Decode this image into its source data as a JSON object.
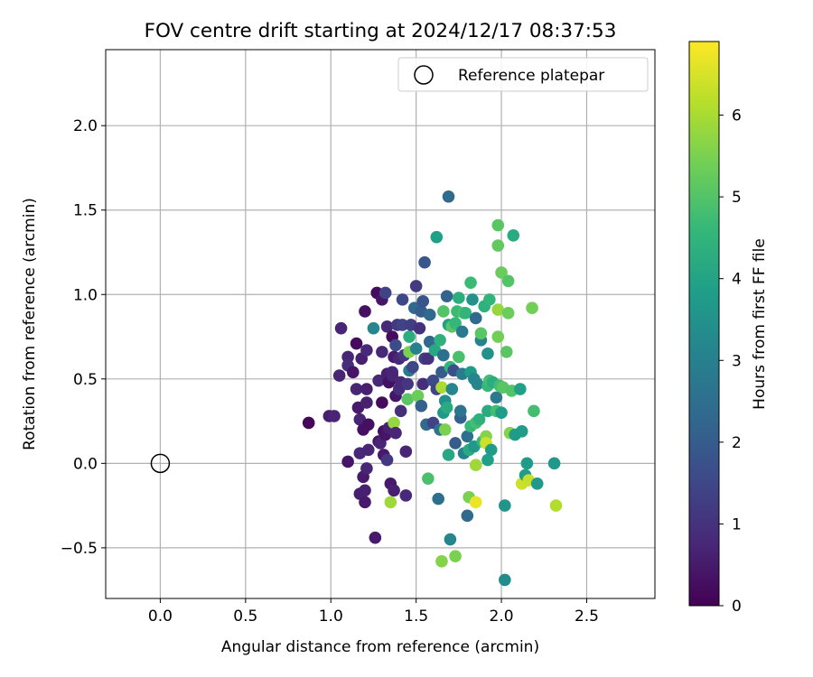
{
  "chart_data": {
    "type": "scatter",
    "title": "FOV centre drift starting at 2024/12/17 08:37:53",
    "xlabel": "Angular distance from reference (arcmin)",
    "ylabel": "Rotation from reference (arcmin)",
    "xlim": [
      -0.32,
      2.9
    ],
    "ylim": [
      -0.8,
      2.45
    ],
    "xticks": [
      "0.0",
      "0.5",
      "1.0",
      "1.5",
      "2.0",
      "2.5"
    ],
    "xtick_values": [
      0.0,
      0.5,
      1.0,
      1.5,
      2.0,
      2.5
    ],
    "yticks": [
      "−0.5",
      "0.0",
      "0.5",
      "1.0",
      "1.5",
      "2.0"
    ],
    "ytick_values": [
      -0.5,
      0.0,
      0.5,
      1.0,
      1.5,
      2.0
    ],
    "grid": true,
    "legend": {
      "position": "upper-right",
      "entries": [
        "Reference platepar"
      ]
    },
    "reference_point": {
      "x": 0.0,
      "y": 0.0,
      "marker": "open-circle"
    },
    "colorbar": {
      "label": "Hours from first FF file",
      "colormap": "viridis",
      "range": [
        0,
        6.9
      ],
      "ticks": [
        "0",
        "1",
        "2",
        "3",
        "4",
        "5",
        "6"
      ],
      "tick_values": [
        0,
        1,
        2,
        3,
        4,
        5,
        6
      ]
    },
    "series": [
      {
        "color_by": "hours",
        "points": [
          {
            "x": 0.87,
            "y": 0.24,
            "c": 0.1
          },
          {
            "x": 0.99,
            "y": 0.28,
            "c": 0.6
          },
          {
            "x": 1.02,
            "y": 0.28,
            "c": 0.7
          },
          {
            "x": 1.06,
            "y": 0.8,
            "c": 0.7
          },
          {
            "x": 1.05,
            "y": 0.52,
            "c": 0.7
          },
          {
            "x": 1.1,
            "y": 0.63,
            "c": 0.7
          },
          {
            "x": 1.1,
            "y": 0.58,
            "c": 0.9
          },
          {
            "x": 1.13,
            "y": 0.54,
            "c": 0.4
          },
          {
            "x": 1.1,
            "y": 0.01,
            "c": 0.4
          },
          {
            "x": 1.15,
            "y": 0.71,
            "c": 0.2
          },
          {
            "x": 1.15,
            "y": 0.44,
            "c": 0.7
          },
          {
            "x": 1.16,
            "y": 0.33,
            "c": 0.5
          },
          {
            "x": 1.17,
            "y": 0.26,
            "c": 0.7
          },
          {
            "x": 1.17,
            "y": 0.06,
            "c": 0.8
          },
          {
            "x": 1.17,
            "y": -0.18,
            "c": 0.6
          },
          {
            "x": 1.18,
            "y": 0.62,
            "c": 0.6
          },
          {
            "x": 1.19,
            "y": 0.2,
            "c": 0.3
          },
          {
            "x": 1.19,
            "y": -0.08,
            "c": 0.5
          },
          {
            "x": 1.2,
            "y": 0.9,
            "c": 0.3
          },
          {
            "x": 1.2,
            "y": -0.23,
            "c": 0.5
          },
          {
            "x": 1.21,
            "y": 0.67,
            "c": 0.8
          },
          {
            "x": 1.21,
            "y": 0.44,
            "c": 0.6
          },
          {
            "x": 1.21,
            "y": 0.36,
            "c": 0.6
          },
          {
            "x": 1.2,
            "y": -0.16,
            "c": 0.6
          },
          {
            "x": 1.22,
            "y": 0.08,
            "c": 0.7
          },
          {
            "x": 1.22,
            "y": 0.23,
            "c": 0.3
          },
          {
            "x": 1.21,
            "y": -0.03,
            "c": 0.7
          },
          {
            "x": 1.25,
            "y": 0.8,
            "c": 3.2
          },
          {
            "x": 1.26,
            "y": -0.44,
            "c": 0.5
          },
          {
            "x": 1.27,
            "y": 1.01,
            "c": 0.2
          },
          {
            "x": 1.28,
            "y": 0.49,
            "c": 0.8
          },
          {
            "x": 1.28,
            "y": 0.13,
            "c": 0.4
          },
          {
            "x": 1.29,
            "y": 0.12,
            "c": 0.7
          },
          {
            "x": 1.3,
            "y": 0.97,
            "c": 0.4
          },
          {
            "x": 1.3,
            "y": 0.66,
            "c": 0.8
          },
          {
            "x": 1.3,
            "y": 0.36,
            "c": 0.2
          },
          {
            "x": 1.31,
            "y": 0.05,
            "c": 0.5
          },
          {
            "x": 1.31,
            "y": 0.19,
            "c": 0.3
          },
          {
            "x": 1.32,
            "y": 0.17,
            "c": 0.4
          },
          {
            "x": 1.32,
            "y": 1.01,
            "c": 1.4
          },
          {
            "x": 1.33,
            "y": 0.81,
            "c": 0.8
          },
          {
            "x": 1.33,
            "y": 0.53,
            "c": 0.6
          },
          {
            "x": 1.33,
            "y": 0.02,
            "c": 1.1
          },
          {
            "x": 1.34,
            "y": 0.21,
            "c": 0.6
          },
          {
            "x": 1.34,
            "y": 0.48,
            "c": 0.3
          },
          {
            "x": 1.35,
            "y": -0.12,
            "c": 0.5
          },
          {
            "x": 1.35,
            "y": -0.23,
            "c": 5.9
          },
          {
            "x": 1.36,
            "y": 0.75,
            "c": 0.2
          },
          {
            "x": 1.36,
            "y": 0.54,
            "c": 0.8
          },
          {
            "x": 1.36,
            "y": 0.52,
            "c": 0.7
          },
          {
            "x": 1.37,
            "y": 0.63,
            "c": 0.5
          },
          {
            "x": 1.37,
            "y": 0.24,
            "c": 5.8
          },
          {
            "x": 1.37,
            "y": -0.16,
            "c": 0.6
          },
          {
            "x": 1.38,
            "y": 0.4,
            "c": 0.4
          },
          {
            "x": 1.38,
            "y": 0.7,
            "c": 1.6
          },
          {
            "x": 1.38,
            "y": 0.18,
            "c": 0.7
          },
          {
            "x": 1.39,
            "y": 0.82,
            "c": 1.2
          },
          {
            "x": 1.4,
            "y": 0.62,
            "c": 0.8
          },
          {
            "x": 1.4,
            "y": 0.44,
            "c": 0.9
          },
          {
            "x": 1.41,
            "y": 0.48,
            "c": 0.8
          },
          {
            "x": 1.41,
            "y": 0.31,
            "c": 0.9
          },
          {
            "x": 1.42,
            "y": 0.97,
            "c": 1.5
          },
          {
            "x": 1.42,
            "y": 0.82,
            "c": 1.4
          },
          {
            "x": 1.43,
            "y": 0.64,
            "c": 1.1
          },
          {
            "x": 1.44,
            "y": 0.07,
            "c": 0.7
          },
          {
            "x": 1.44,
            "y": -0.19,
            "c": 0.8
          },
          {
            "x": 1.45,
            "y": 0.47,
            "c": 1.1
          },
          {
            "x": 1.45,
            "y": 0.38,
            "c": 5.1
          },
          {
            "x": 1.46,
            "y": 0.66,
            "c": 5.5
          },
          {
            "x": 1.46,
            "y": 0.55,
            "c": 2.8
          },
          {
            "x": 1.46,
            "y": 0.75,
            "c": 4.3
          },
          {
            "x": 1.47,
            "y": 0.82,
            "c": 1.3
          },
          {
            "x": 1.48,
            "y": 0.57,
            "c": 1.5
          },
          {
            "x": 1.49,
            "y": 0.92,
            "c": 2.3
          },
          {
            "x": 1.5,
            "y": 1.05,
            "c": 1.2
          },
          {
            "x": 1.5,
            "y": 0.68,
            "c": 3.0
          },
          {
            "x": 1.51,
            "y": 0.4,
            "c": 5.3
          },
          {
            "x": 1.52,
            "y": 0.8,
            "c": 1.0
          },
          {
            "x": 1.53,
            "y": 0.9,
            "c": 2.0
          },
          {
            "x": 1.53,
            "y": 0.34,
            "c": 2.1
          },
          {
            "x": 1.54,
            "y": 0.47,
            "c": 0.9
          },
          {
            "x": 1.54,
            "y": 0.96,
            "c": 1.8
          },
          {
            "x": 1.55,
            "y": 1.19,
            "c": 1.9
          },
          {
            "x": 1.55,
            "y": 0.62,
            "c": 1.3
          },
          {
            "x": 1.56,
            "y": 0.23,
            "c": 2.4
          },
          {
            "x": 1.57,
            "y": 0.62,
            "c": 1.0
          },
          {
            "x": 1.57,
            "y": -0.09,
            "c": 4.9
          },
          {
            "x": 1.58,
            "y": 0.72,
            "c": 2.3
          },
          {
            "x": 1.58,
            "y": 0.88,
            "c": 2.4
          },
          {
            "x": 1.6,
            "y": 0.24,
            "c": 1.4
          },
          {
            "x": 1.6,
            "y": 0.49,
            "c": 1.6
          },
          {
            "x": 1.61,
            "y": 0.67,
            "c": 4.1
          },
          {
            "x": 1.62,
            "y": 1.34,
            "c": 3.9
          },
          {
            "x": 1.62,
            "y": 0.44,
            "c": 1.4
          },
          {
            "x": 1.63,
            "y": -0.21,
            "c": 2.5
          },
          {
            "x": 1.64,
            "y": 0.73,
            "c": 4.4
          },
          {
            "x": 1.64,
            "y": 0.2,
            "c": 2.6
          },
          {
            "x": 1.65,
            "y": 0.45,
            "c": 6.0
          },
          {
            "x": 1.65,
            "y": -0.58,
            "c": 5.6
          },
          {
            "x": 1.65,
            "y": 0.54,
            "c": 2.0
          },
          {
            "x": 1.66,
            "y": 0.9,
            "c": 5.0
          },
          {
            "x": 1.66,
            "y": 0.3,
            "c": 3.7
          },
          {
            "x": 1.66,
            "y": 0.64,
            "c": 2.5
          },
          {
            "x": 1.67,
            "y": 0.2,
            "c": 5.5
          },
          {
            "x": 1.67,
            "y": 0.37,
            "c": 3.4
          },
          {
            "x": 1.68,
            "y": 0.99,
            "c": 2.2
          },
          {
            "x": 1.68,
            "y": 0.33,
            "c": 4.2
          },
          {
            "x": 1.69,
            "y": 1.58,
            "c": 2.4
          },
          {
            "x": 1.69,
            "y": 0.82,
            "c": 3.9
          },
          {
            "x": 1.69,
            "y": 0.05,
            "c": 4.1
          },
          {
            "x": 1.7,
            "y": -0.45,
            "c": 3.2
          },
          {
            "x": 1.7,
            "y": 0.57,
            "c": 4.5
          },
          {
            "x": 1.71,
            "y": 0.81,
            "c": 5.1
          },
          {
            "x": 1.71,
            "y": 0.44,
            "c": 3.2
          },
          {
            "x": 1.72,
            "y": 0.55,
            "c": 1.7
          },
          {
            "x": 1.73,
            "y": 0.12,
            "c": 2.0
          },
          {
            "x": 1.73,
            "y": 0.83,
            "c": 4.6
          },
          {
            "x": 1.73,
            "y": -0.55,
            "c": 5.5
          },
          {
            "x": 1.74,
            "y": 0.9,
            "c": 4.7
          },
          {
            "x": 1.75,
            "y": 0.98,
            "c": 4.3
          },
          {
            "x": 1.75,
            "y": 0.63,
            "c": 4.9
          },
          {
            "x": 1.76,
            "y": 0.27,
            "c": 2.1
          },
          {
            "x": 1.76,
            "y": 0.31,
            "c": 2.7
          },
          {
            "x": 1.77,
            "y": 0.78,
            "c": 2.8
          },
          {
            "x": 1.77,
            "y": 0.53,
            "c": 2.9
          },
          {
            "x": 1.78,
            "y": 0.06,
            "c": 3.0
          },
          {
            "x": 1.78,
            "y": 0.89,
            "c": 5.0
          },
          {
            "x": 1.79,
            "y": 0.89,
            "c": 4.5
          },
          {
            "x": 1.8,
            "y": -0.31,
            "c": 2.4
          },
          {
            "x": 1.8,
            "y": 0.16,
            "c": 2.5
          },
          {
            "x": 1.81,
            "y": 0.08,
            "c": 4.2
          },
          {
            "x": 1.81,
            "y": -0.2,
            "c": 5.5
          },
          {
            "x": 1.82,
            "y": 1.07,
            "c": 4.7
          },
          {
            "x": 1.82,
            "y": 0.54,
            "c": 3.8
          },
          {
            "x": 1.82,
            "y": 0.22,
            "c": 4.6
          },
          {
            "x": 1.83,
            "y": 0.97,
            "c": 3.5
          },
          {
            "x": 1.84,
            "y": 0.5,
            "c": 3.2
          },
          {
            "x": 1.84,
            "y": 0.1,
            "c": 3.7
          },
          {
            "x": 1.85,
            "y": 0.86,
            "c": 2.4
          },
          {
            "x": 1.85,
            "y": 0.24,
            "c": 4.8
          },
          {
            "x": 1.85,
            "y": -0.01,
            "c": 5.9
          },
          {
            "x": 1.85,
            "y": -0.23,
            "c": 6.7
          },
          {
            "x": 1.86,
            "y": 0.47,
            "c": 3.2
          },
          {
            "x": 1.87,
            "y": 0.26,
            "c": 4.4
          },
          {
            "x": 1.88,
            "y": 0.73,
            "c": 3.1
          },
          {
            "x": 1.88,
            "y": 0.77,
            "c": 5.1
          },
          {
            "x": 1.89,
            "y": 0.13,
            "c": 4.6
          },
          {
            "x": 1.9,
            "y": 0.93,
            "c": 4.4
          },
          {
            "x": 1.91,
            "y": 0.16,
            "c": 5.6
          },
          {
            "x": 1.91,
            "y": 0.12,
            "c": 6.4
          },
          {
            "x": 1.92,
            "y": 0.31,
            "c": 4.2
          },
          {
            "x": 1.92,
            "y": 0.46,
            "c": 4.6
          },
          {
            "x": 1.92,
            "y": 0.65,
            "c": 3.5
          },
          {
            "x": 1.92,
            "y": 0.02,
            "c": 3.9
          },
          {
            "x": 1.93,
            "y": 0.97,
            "c": 4.5
          },
          {
            "x": 1.93,
            "y": 0.49,
            "c": 4.8
          },
          {
            "x": 1.94,
            "y": 0.08,
            "c": 3.8
          },
          {
            "x": 1.95,
            "y": 0.48,
            "c": 4.3
          },
          {
            "x": 1.97,
            "y": 0.39,
            "c": 2.8
          },
          {
            "x": 1.97,
            "y": 0.31,
            "c": 4.8
          },
          {
            "x": 1.98,
            "y": 1.41,
            "c": 5.1
          },
          {
            "x": 1.98,
            "y": 1.29,
            "c": 5.2
          },
          {
            "x": 1.98,
            "y": 0.91,
            "c": 5.8
          },
          {
            "x": 1.98,
            "y": 0.75,
            "c": 5.4
          },
          {
            "x": 1.99,
            "y": 0.46,
            "c": 4.8
          },
          {
            "x": 2.0,
            "y": 1.13,
            "c": 5.3
          },
          {
            "x": 2.0,
            "y": 0.3,
            "c": 3.8
          },
          {
            "x": 2.01,
            "y": 0.45,
            "c": 5.1
          },
          {
            "x": 2.02,
            "y": -0.25,
            "c": 3.6
          },
          {
            "x": 2.02,
            "y": -0.69,
            "c": 3.3
          },
          {
            "x": 2.03,
            "y": 0.66,
            "c": 5.1
          },
          {
            "x": 2.04,
            "y": 1.08,
            "c": 5.0
          },
          {
            "x": 2.04,
            "y": 0.89,
            "c": 5.3
          },
          {
            "x": 2.05,
            "y": 0.18,
            "c": 5.6
          },
          {
            "x": 2.06,
            "y": 0.43,
            "c": 5.0
          },
          {
            "x": 2.07,
            "y": 1.35,
            "c": 4.2
          },
          {
            "x": 2.08,
            "y": 0.17,
            "c": 3.8
          },
          {
            "x": 2.11,
            "y": 0.44,
            "c": 3.9
          },
          {
            "x": 2.12,
            "y": 0.19,
            "c": 3.8
          },
          {
            "x": 2.12,
            "y": -0.12,
            "c": 6.4
          },
          {
            "x": 2.14,
            "y": -0.07,
            "c": 3.8
          },
          {
            "x": 2.15,
            "y": 0.0,
            "c": 3.8
          },
          {
            "x": 2.16,
            "y": -0.1,
            "c": 6.3
          },
          {
            "x": 2.18,
            "y": 0.92,
            "c": 5.4
          },
          {
            "x": 2.19,
            "y": 0.31,
            "c": 4.8
          },
          {
            "x": 2.21,
            "y": -0.12,
            "c": 3.7
          },
          {
            "x": 2.31,
            "y": 0.0,
            "c": 3.7
          },
          {
            "x": 2.32,
            "y": -0.25,
            "c": 6.1
          }
        ]
      }
    ]
  }
}
